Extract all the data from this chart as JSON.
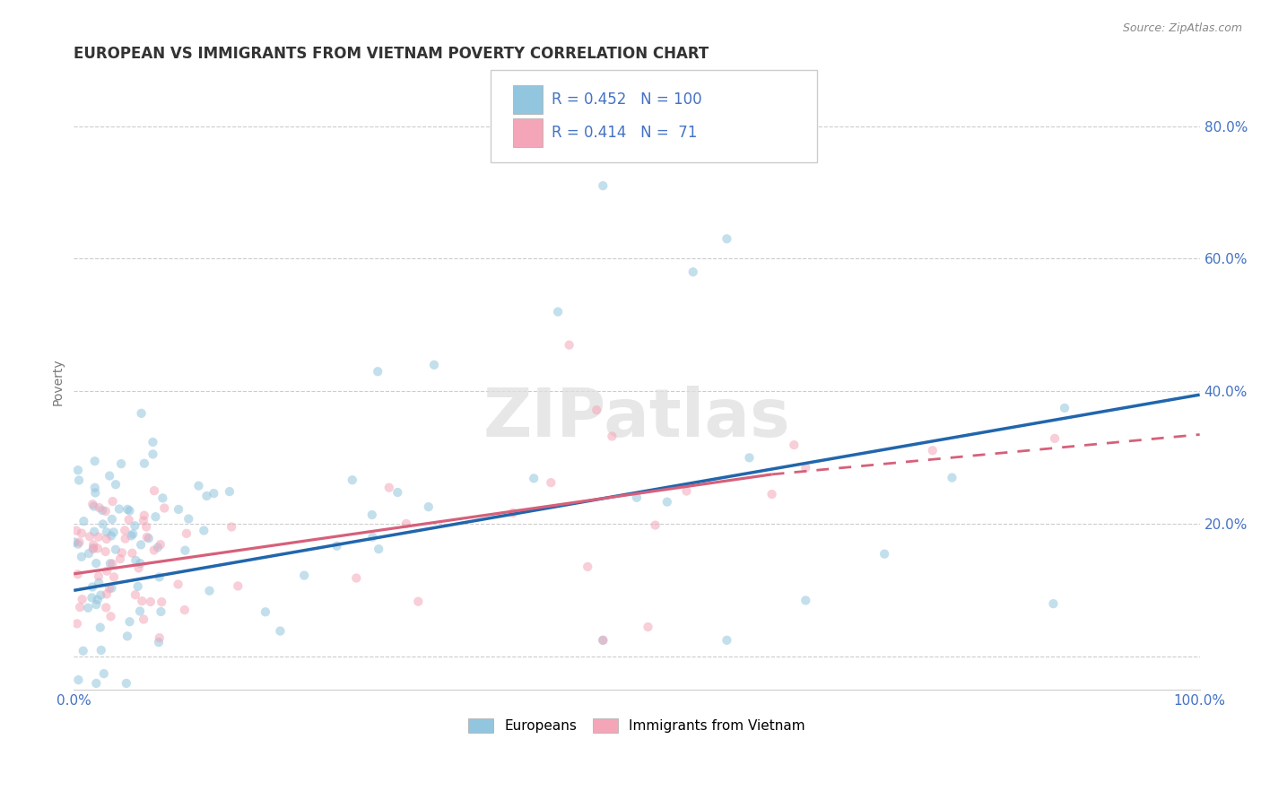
{
  "title": "EUROPEAN VS IMMIGRANTS FROM VIETNAM POVERTY CORRELATION CHART",
  "source": "Source: ZipAtlas.com",
  "ylabel": "Poverty",
  "watermark": "ZIPatlas",
  "blue_color": "#92C5DE",
  "pink_color": "#F4A6B8",
  "blue_line_color": "#2166AC",
  "pink_line_color": "#D6607A",
  "axis_label_color": "#4472C4",
  "xlim": [
    0.0,
    1.0
  ],
  "ylim": [
    -0.05,
    0.88
  ],
  "yticks": [
    0.0,
    0.2,
    0.4,
    0.6,
    0.8
  ],
  "ytick_labels": [
    "",
    "20.0%",
    "40.0%",
    "60.0%",
    "80.0%"
  ],
  "xticks": [
    0.0,
    0.25,
    0.5,
    0.75,
    1.0
  ],
  "xtick_labels": [
    "0.0%",
    "",
    "",
    "",
    "100.0%"
  ],
  "blue_regression": [
    0.0,
    1.0,
    0.1,
    0.395
  ],
  "pink_regression_solid": [
    0.0,
    0.62,
    0.125,
    0.275
  ],
  "pink_regression_dashed": [
    0.62,
    1.0,
    0.275,
    0.335
  ],
  "legend_r_blue": "0.452",
  "legend_n_blue": "100",
  "legend_r_pink": "0.414",
  "legend_n_pink": "71",
  "grid_color": "#CCCCCC",
  "background_color": "#FFFFFF",
  "title_fontsize": 12,
  "tick_fontsize": 11,
  "ylabel_fontsize": 10,
  "marker_size": 55,
  "marker_alpha": 0.55,
  "seed_blue": 7,
  "seed_pink": 13
}
